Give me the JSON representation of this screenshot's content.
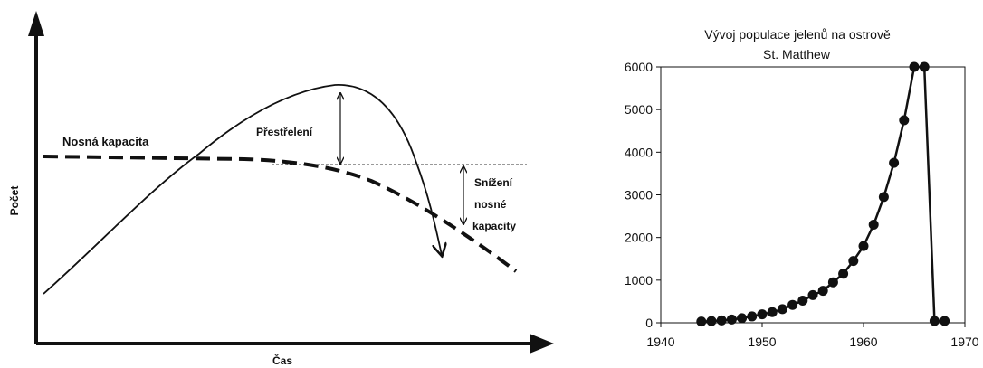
{
  "chart_data": [
    {
      "type": "line",
      "xlabel": "Čas",
      "ylabel": "Počet",
      "series": [
        {
          "name": "Nosná kapacita"
        },
        {
          "name": ""
        }
      ],
      "annotations": {
        "overshoot": "Přestřelení",
        "reduction_lines": [
          "Snížení",
          "nosné",
          "kapacity"
        ]
      },
      "grid": false
    },
    {
      "type": "line",
      "title_lines": [
        "Vývoj populace jelenů na ostrově",
        "St. Matthew"
      ],
      "xlim": [
        1940,
        1970
      ],
      "ylim": [
        0,
        6000
      ],
      "xticks": [
        1940,
        1950,
        1960,
        1970
      ],
      "yticks": [
        0,
        1000,
        2000,
        3000,
        4000,
        5000,
        6000
      ],
      "grid": false,
      "x": [
        1944,
        1945,
        1946,
        1947,
        1948,
        1949,
        1950,
        1951,
        1952,
        1953,
        1954,
        1955,
        1956,
        1957,
        1958,
        1959,
        1960,
        1961,
        1962,
        1963,
        1964,
        1965,
        1966,
        1967,
        1968
      ],
      "values": [
        29,
        40,
        56,
        78,
        108,
        150,
        200,
        250,
        320,
        420,
        520,
        650,
        750,
        950,
        1150,
        1450,
        1800,
        2300,
        2950,
        3750,
        4750,
        6000,
        6000,
        42,
        42
      ]
    }
  ]
}
